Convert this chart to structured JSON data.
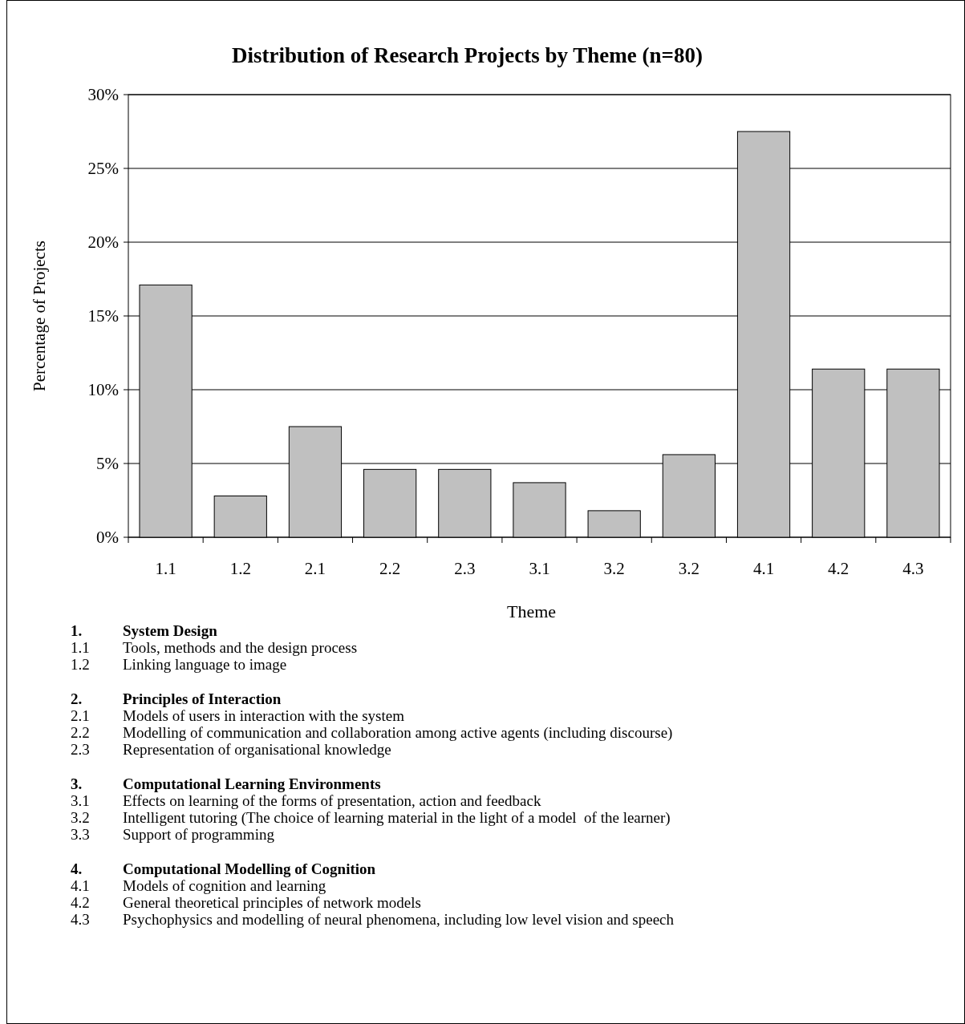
{
  "chart_data": {
    "type": "bar",
    "title": "Distribution of Research Projects by Theme (n=80)",
    "xlabel": "Theme",
    "ylabel": "Percentage of Projects",
    "categories": [
      "1.1",
      "1.2",
      "2.1",
      "2.2",
      "2.3",
      "3.1",
      "3.2",
      "3.2",
      "4.1",
      "4.2",
      "4.3"
    ],
    "values": [
      17.1,
      2.8,
      7.5,
      4.6,
      4.6,
      3.7,
      1.8,
      5.6,
      27.5,
      11.4,
      11.4
    ],
    "color": "#c0c0c0",
    "ylim": [
      0,
      30
    ],
    "yticks": [
      {
        "value": 0,
        "label": "0%"
      },
      {
        "value": 5,
        "label": "5%"
      },
      {
        "value": 10,
        "label": "10%"
      },
      {
        "value": 15,
        "label": "15%"
      },
      {
        "value": 20,
        "label": "20%"
      },
      {
        "value": 25,
        "label": "25%"
      },
      {
        "value": 30,
        "label": "30%"
      }
    ],
    "grid": "y",
    "annotations": [
      "1. System Design",
      "1.1 Tools, methods and the design process",
      "1.2 Linking language to image",
      "2. Principles of Interaction",
      "2.1 Models of users in interaction with the system",
      "2.2 Modelling of communication and collaboration among active agents (including discourse)",
      "2.3 Representation of organisational knowledge",
      "3. Computational Learning Environments",
      "3.1 Effects on learning of the forms of presentation, action and feedback",
      "3.2 Intelligent tutoring (The choice of learning material in the light of a model  of the learner)",
      "3.3 Support of programming",
      "4. Computational Modelling of Cognition",
      "4.1 Models of cognition and learning",
      "4.2 General theoretical principles of network models",
      "4.3 Psychophysics and modelling of neural phenomena, including low level vision and speech"
    ]
  }
}
